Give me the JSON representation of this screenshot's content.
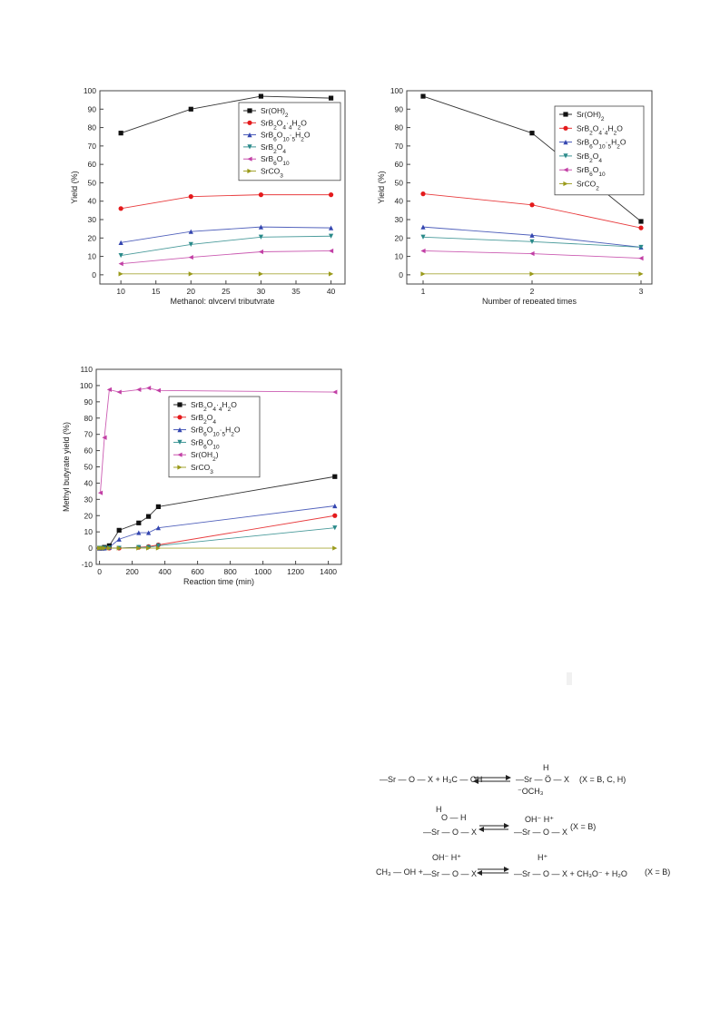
{
  "chart_data": [
    {
      "type": "line",
      "xlabel": "Methanol: glyceryl tributyrate",
      "ylabel": "Yield (%)",
      "xlim": [
        7,
        42
      ],
      "ylim": [
        -5,
        100
      ],
      "xticks": [
        10,
        15,
        20,
        25,
        30,
        35,
        40
      ],
      "yticks": [
        0,
        10,
        20,
        30,
        40,
        50,
        60,
        70,
        80,
        90,
        100
      ],
      "x": [
        10,
        20,
        30,
        40
      ],
      "grid": false,
      "legend": "top-right",
      "series": [
        {
          "name": "Sr(OH)2",
          "marker": "square",
          "color": "#111111",
          "values": [
            77,
            90,
            97,
            96
          ]
        },
        {
          "name": "SrB2O4·4H2O",
          "marker": "circle",
          "color": "#e41a1c",
          "values": [
            36,
            42.5,
            43.5,
            43.5
          ]
        },
        {
          "name": "SrB6O10·5H2O",
          "marker": "triangle-up",
          "color": "#3446b0",
          "values": [
            17.5,
            23.5,
            26,
            25.5
          ]
        },
        {
          "name": "SrB2O4",
          "marker": "triangle-down",
          "color": "#2a8a8a",
          "values": [
            10.5,
            16.5,
            20.5,
            21
          ]
        },
        {
          "name": "SrB6O10",
          "marker": "triangle-left",
          "color": "#c23fa5",
          "values": [
            6,
            9.5,
            12.5,
            13
          ]
        },
        {
          "name": "SrCO3",
          "marker": "triangle-right",
          "color": "#9a9a1a",
          "values": [
            0.5,
            0.5,
            0.5,
            0.5
          ]
        }
      ]
    },
    {
      "type": "line",
      "xlabel": "Number of repeated times",
      "ylabel": "Yield (%)",
      "xlim": [
        0.85,
        3.1
      ],
      "ylim": [
        -5,
        100
      ],
      "xticks": [
        1,
        2,
        3
      ],
      "yticks": [
        0,
        10,
        20,
        30,
        40,
        50,
        60,
        70,
        80,
        90,
        100
      ],
      "x": [
        1,
        2,
        3
      ],
      "grid": false,
      "legend": "top-right",
      "series": [
        {
          "name": "Sr(OH)2",
          "marker": "square",
          "color": "#111111",
          "values": [
            97,
            77,
            29
          ]
        },
        {
          "name": "SrB2O4·4H2O",
          "marker": "circle",
          "color": "#e41a1c",
          "values": [
            44,
            38,
            25.5
          ]
        },
        {
          "name": "SrB6O10·5H2O",
          "marker": "triangle-up",
          "color": "#3446b0",
          "values": [
            26,
            21.5,
            15
          ]
        },
        {
          "name": "SrB2O4",
          "marker": "triangle-down",
          "color": "#2a8a8a",
          "values": [
            20.5,
            18,
            15
          ]
        },
        {
          "name": "SrB6O10",
          "marker": "triangle-left",
          "color": "#c23fa5",
          "values": [
            13,
            11.5,
            9
          ]
        },
        {
          "name": "SrCO2",
          "marker": "triangle-right",
          "color": "#9a9a1a",
          "values": [
            0.5,
            0.5,
            0.5
          ]
        }
      ]
    },
    {
      "type": "line",
      "xlabel": "Reaction time (min)",
      "ylabel": "Methyl butyrate yield (%)",
      "xlim": [
        -20,
        1480
      ],
      "ylim": [
        -10,
        110
      ],
      "xticks": [
        0,
        200,
        400,
        600,
        800,
        1000,
        1200,
        1400
      ],
      "yticks": [
        -10,
        0,
        10,
        20,
        30,
        40,
        50,
        60,
        70,
        80,
        90,
        100,
        110
      ],
      "grid": false,
      "legend": "right",
      "series": [
        {
          "name": "SrB2O4·4H2O",
          "marker": "square",
          "color": "#111111",
          "x": [
            0,
            15,
            30,
            60,
            120,
            240,
            300,
            360,
            1440
          ],
          "values": [
            0,
            0,
            0.5,
            1.5,
            11,
            15.5,
            19.5,
            25.5,
            44
          ]
        },
        {
          "name": "SrB2O4",
          "marker": "circle",
          "color": "#e41a1c",
          "x": [
            0,
            15,
            30,
            60,
            120,
            240,
            300,
            360,
            1440
          ],
          "values": [
            0,
            0,
            0,
            0,
            0,
            0.5,
            1,
            2,
            20
          ]
        },
        {
          "name": "SrB6O10·5H2O",
          "marker": "triangle-up",
          "color": "#3446b0",
          "x": [
            0,
            15,
            30,
            60,
            120,
            240,
            300,
            360,
            1440
          ],
          "values": [
            0,
            0,
            0,
            0.5,
            5.5,
            9.5,
            9.5,
            12.5,
            26
          ]
        },
        {
          "name": "SrB6O10",
          "marker": "triangle-down",
          "color": "#2a8a8a",
          "x": [
            0,
            15,
            30,
            60,
            120,
            240,
            300,
            360,
            1440
          ],
          "values": [
            0,
            0,
            0,
            0,
            0,
            0.5,
            0.5,
            1.5,
            12.5
          ]
        },
        {
          "name": "Sr(OH2)",
          "marker": "triangle-left",
          "color": "#c23fa5",
          "x": [
            5,
            30,
            60,
            120,
            240,
            300,
            360,
            1440
          ],
          "values": [
            34,
            68,
            97.5,
            96,
            97.5,
            98.5,
            97,
            96
          ]
        },
        {
          "name": "SrCO3",
          "marker": "triangle-right",
          "color": "#9a9a1a",
          "x": [
            0,
            15,
            30,
            60,
            120,
            240,
            300,
            360,
            1440
          ],
          "values": [
            0,
            0,
            0,
            0,
            0,
            0,
            0,
            0,
            0
          ]
        }
      ]
    }
  ],
  "scheme": {
    "line1": {
      "left": "—Sr — O — X  +  H₃C — OH",
      "top": "H",
      "right": "—Sr — Ö — X",
      "bottom": "⁻OCH₃",
      "note": "(X = B, C, H)"
    },
    "line2": {
      "left_top": "H",
      "left_mid": "O — H",
      "left": "—Sr — O — X",
      "right_top": "OH⁻ H⁺",
      "right": "—Sr — O — X",
      "note": "(X = B)"
    },
    "line3": {
      "left": "CH₃ — OH   +",
      "mid_top": "OH⁻ H⁺",
      "mid": "—Sr — O — X",
      "right_top": "H⁺",
      "right": "—Sr — O — X   +  CH₃O⁻   +   H₂O",
      "note": "(X = B)"
    }
  }
}
